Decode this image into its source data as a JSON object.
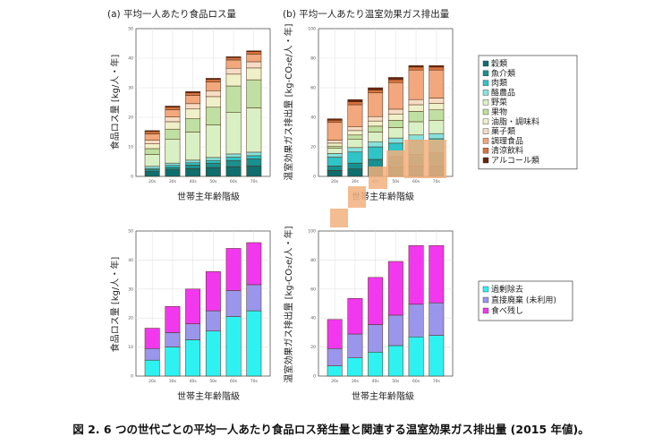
{
  "caption": "図 2. 6 つの世代ごとの平均一人あたり食品ロス発生量と関連する温室効果ガス排出量 (2015 年値)。",
  "colors": {
    "穀類": "#0f6e6e",
    "魚介類": "#199090",
    "肉類": "#2ec4c8",
    "酪農品": "#86e2dd",
    "野菜": "#d9f0c4",
    "果物": "#bfe0a2",
    "油脂・調味料": "#f0f0c8",
    "菓子類": "#f6dcc4",
    "調理食品": "#f2a77c",
    "清涼飲料": "#d8723e",
    "アルコール類": "#6a2410",
    "過剰除去": "#2ef2f2",
    "直接廃棄 (未利用)": "#9a96ec",
    "食べ残し": "#f238ee",
    "overlay": "#f2b07e"
  },
  "chart_data": [
    {
      "id": "a-top",
      "type": "bar",
      "stacked": true,
      "title": "(a) 平均一人あたり食品ロス量",
      "ylabel": "食品ロス量 [kg/人・年]",
      "xlabel": "世帯主年齢階級",
      "ylim": [
        0,
        50
      ],
      "yticks": [
        0,
        10,
        20,
        30,
        40,
        50
      ],
      "categories": [
        "20s",
        "30s",
        "40s",
        "50s",
        "60s",
        "70s"
      ],
      "grid": true,
      "series": [
        {
          "name": "穀類",
          "values": [
            1.6,
            2.2,
            2.6,
            3.0,
            3.3,
            3.5
          ]
        },
        {
          "name": "魚介類",
          "values": [
            0.6,
            0.8,
            1.2,
            1.5,
            2.1,
            2.4
          ]
        },
        {
          "name": "肉類",
          "values": [
            0.5,
            0.7,
            0.8,
            0.9,
            1.1,
            1.1
          ]
        },
        {
          "name": "酪農品",
          "values": [
            0.7,
            0.8,
            0.9,
            1.0,
            1.1,
            1.2
          ]
        },
        {
          "name": "野菜",
          "values": [
            4.0,
            8.0,
            9.5,
            11.0,
            14.0,
            15.0
          ]
        },
        {
          "name": "果物",
          "values": [
            2.0,
            3.5,
            4.5,
            6.0,
            9.0,
            9.5
          ]
        },
        {
          "name": "油脂・調味料",
          "values": [
            1.6,
            2.5,
            3.3,
            3.6,
            4.0,
            4.0
          ]
        },
        {
          "name": "菓子類",
          "values": [
            1.2,
            1.6,
            1.8,
            2.0,
            2.0,
            2.1
          ]
        },
        {
          "name": "調理食品",
          "values": [
            2.2,
            2.5,
            2.8,
            3.0,
            2.8,
            2.6
          ]
        },
        {
          "name": "清涼飲料",
          "values": [
            0.8,
            0.8,
            0.9,
            0.8,
            0.8,
            0.8
          ]
        },
        {
          "name": "アルコール類",
          "values": [
            0.3,
            0.4,
            0.4,
            0.4,
            0.3,
            0.3
          ]
        }
      ]
    },
    {
      "id": "b-top",
      "type": "bar",
      "stacked": true,
      "title": "(b) 平均一人あたり温室効果ガス排出量",
      "ylabel": "温室効果ガス排出量 [kg-CO₂e/人・年]",
      "xlabel": "世帯主年齢階級",
      "ylim": [
        0,
        100
      ],
      "yticks": [
        0,
        20,
        40,
        60,
        80,
        100
      ],
      "categories": [
        "20s",
        "30s",
        "40s",
        "50s",
        "60s",
        "70s"
      ],
      "grid": true,
      "series": [
        {
          "name": "穀類",
          "values": [
            4.0,
            5.0,
            6.0,
            6.5,
            7.0,
            7.0
          ]
        },
        {
          "name": "魚介類",
          "values": [
            3.0,
            4.0,
            5.5,
            7.0,
            8.0,
            9.0
          ]
        },
        {
          "name": "肉類",
          "values": [
            6.0,
            7.5,
            8.5,
            9.0,
            9.5,
            9.5
          ]
        },
        {
          "name": "酪農品",
          "values": [
            2.5,
            3.0,
            3.5,
            3.5,
            3.5,
            3.5
          ]
        },
        {
          "name": "野菜",
          "values": [
            3.5,
            5.5,
            6.5,
            7.0,
            9.0,
            9.0
          ]
        },
        {
          "name": "果物",
          "values": [
            1.5,
            3.0,
            4.0,
            5.0,
            7.0,
            7.0
          ]
        },
        {
          "name": "油脂・調味料",
          "values": [
            2.0,
            3.0,
            3.5,
            4.0,
            4.5,
            4.5
          ]
        },
        {
          "name": "菓子類",
          "values": [
            2.0,
            2.5,
            3.0,
            3.5,
            3.5,
            3.5
          ]
        },
        {
          "name": "調理食品",
          "values": [
            12.0,
            15.0,
            16.0,
            18.0,
            20.0,
            19.0
          ]
        },
        {
          "name": "清涼飲料",
          "values": [
            1.5,
            2.0,
            2.0,
            2.0,
            2.0,
            2.0
          ]
        },
        {
          "name": "アルコール類",
          "values": [
            1.0,
            1.5,
            1.5,
            1.5,
            1.0,
            1.0
          ]
        }
      ]
    },
    {
      "id": "a-bottom",
      "type": "bar",
      "stacked": true,
      "title": "",
      "ylabel": "食品ロス量 [kg/人・年]",
      "xlabel": "世帯主年齢階級",
      "ylim": [
        0,
        50
      ],
      "yticks": [
        0,
        10,
        20,
        30,
        40,
        50
      ],
      "categories": [
        "20s",
        "30s",
        "40s",
        "50s",
        "60s",
        "70s"
      ],
      "grid": true,
      "series": [
        {
          "name": "過剰除去",
          "values": [
            5.5,
            10.0,
            12.5,
            15.5,
            20.5,
            22.5
          ]
        },
        {
          "name": "直接廃棄 (未利用)",
          "values": [
            4.0,
            5.0,
            5.5,
            7.0,
            9.0,
            9.0
          ]
        },
        {
          "name": "食べ残し",
          "values": [
            7.0,
            9.0,
            12.0,
            13.5,
            14.5,
            14.5
          ]
        }
      ]
    },
    {
      "id": "b-bottom",
      "type": "bar",
      "stacked": true,
      "title": "",
      "ylabel": "温室効果ガス排出量 [kg-CO₂e/人・年]",
      "xlabel": "世帯主年齢階級",
      "ylim": [
        0,
        100
      ],
      "yticks": [
        0,
        20,
        40,
        60,
        80,
        100
      ],
      "categories": [
        "20s",
        "30s",
        "40s",
        "50s",
        "60s",
        "70s"
      ],
      "grid": true,
      "series": [
        {
          "name": "過剰除去",
          "values": [
            7.0,
            12.5,
            16.5,
            21.0,
            27.0,
            28.0
          ]
        },
        {
          "name": "直接廃棄 (未利用)",
          "values": [
            12.0,
            16.5,
            19.0,
            21.0,
            22.5,
            22.5
          ]
        },
        {
          "name": "食べ残し",
          "values": [
            20.0,
            24.5,
            32.5,
            37.0,
            40.5,
            39.5
          ]
        }
      ]
    }
  ],
  "legend_top": [
    "穀類",
    "魚介類",
    "肉類",
    "酪農品",
    "野菜",
    "果物",
    "油脂・調味料",
    "菓子類",
    "調理食品",
    "清涼飲料",
    "アルコール類"
  ],
  "legend_bottom": [
    "過剰除去",
    "直接廃棄 (未利用)",
    "食べ残し"
  ]
}
